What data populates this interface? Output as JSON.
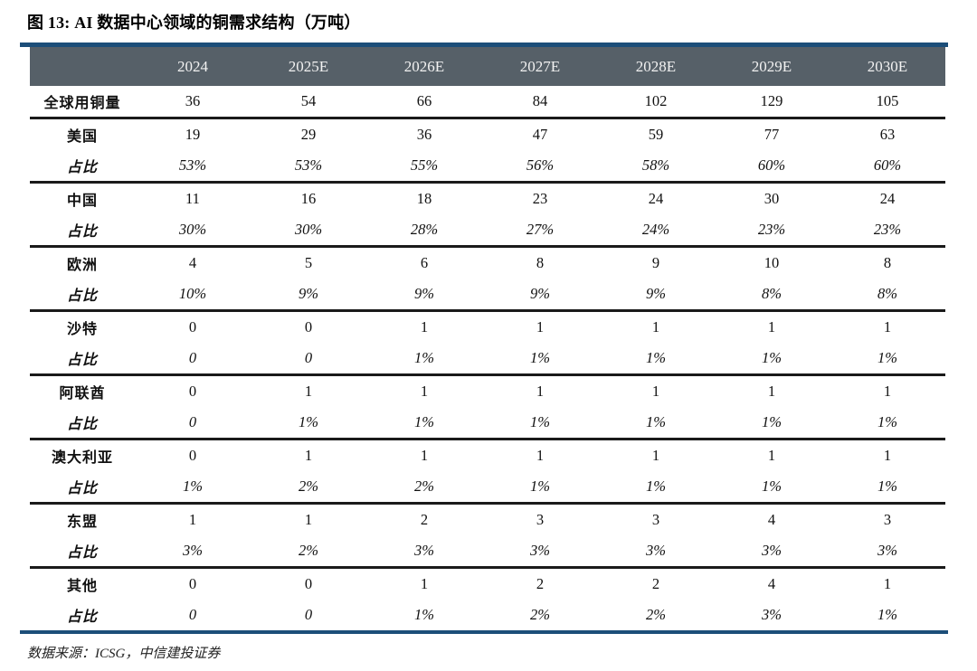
{
  "figure": {
    "title": "图 13: AI 数据中心领域的铜需求结构（万吨）",
    "source": "数据来源：ICSG，中信建投证券"
  },
  "colors": {
    "accent_blue": "#1C4E79",
    "header_bg": "#566068",
    "header_text": "#F2F2F2",
    "divider_black": "#1A1A1A",
    "page_bg": "#FFFFFF"
  },
  "chart_data": {
    "type": "table",
    "title": "AI 数据中心领域的铜需求结构（万吨）",
    "columns": [
      "",
      "2024",
      "2025E",
      "2026E",
      "2027E",
      "2028E",
      "2029E",
      "2030E"
    ],
    "rows": [
      {
        "label": "全球用铜量",
        "values": [
          "36",
          "54",
          "66",
          "84",
          "102",
          "129",
          "105"
        ],
        "italic": false,
        "divider_below": true
      },
      {
        "label": "美国",
        "values": [
          "19",
          "29",
          "36",
          "47",
          "59",
          "77",
          "63"
        ],
        "italic": false,
        "divider_below": false
      },
      {
        "label": "占比",
        "values": [
          "53%",
          "53%",
          "55%",
          "56%",
          "58%",
          "60%",
          "60%"
        ],
        "italic": true,
        "divider_below": true
      },
      {
        "label": "中国",
        "values": [
          "11",
          "16",
          "18",
          "23",
          "24",
          "30",
          "24"
        ],
        "italic": false,
        "divider_below": false
      },
      {
        "label": "占比",
        "values": [
          "30%",
          "30%",
          "28%",
          "27%",
          "24%",
          "23%",
          "23%"
        ],
        "italic": true,
        "divider_below": true
      },
      {
        "label": "欧洲",
        "values": [
          "4",
          "5",
          "6",
          "8",
          "9",
          "10",
          "8"
        ],
        "italic": false,
        "divider_below": false
      },
      {
        "label": "占比",
        "values": [
          "10%",
          "9%",
          "9%",
          "9%",
          "9%",
          "8%",
          "8%"
        ],
        "italic": true,
        "divider_below": true
      },
      {
        "label": "沙特",
        "values": [
          "0",
          "0",
          "1",
          "1",
          "1",
          "1",
          "1"
        ],
        "italic": false,
        "divider_below": false
      },
      {
        "label": "占比",
        "values": [
          "0",
          "0",
          "1%",
          "1%",
          "1%",
          "1%",
          "1%"
        ],
        "italic": true,
        "divider_below": true
      },
      {
        "label": "阿联酋",
        "values": [
          "0",
          "1",
          "1",
          "1",
          "1",
          "1",
          "1"
        ],
        "italic": false,
        "divider_below": false
      },
      {
        "label": "占比",
        "values": [
          "0",
          "1%",
          "1%",
          "1%",
          "1%",
          "1%",
          "1%"
        ],
        "italic": true,
        "divider_below": true
      },
      {
        "label": "澳大利亚",
        "values": [
          "0",
          "1",
          "1",
          "1",
          "1",
          "1",
          "1"
        ],
        "italic": false,
        "divider_below": false
      },
      {
        "label": "占比",
        "values": [
          "1%",
          "2%",
          "2%",
          "1%",
          "1%",
          "1%",
          "1%"
        ],
        "italic": true,
        "divider_below": true
      },
      {
        "label": "东盟",
        "values": [
          "1",
          "1",
          "2",
          "3",
          "3",
          "4",
          "3"
        ],
        "italic": false,
        "divider_below": false
      },
      {
        "label": "占比",
        "values": [
          "3%",
          "2%",
          "3%",
          "3%",
          "3%",
          "3%",
          "3%"
        ],
        "italic": true,
        "divider_below": true
      },
      {
        "label": "其他",
        "values": [
          "0",
          "0",
          "1",
          "2",
          "2",
          "4",
          "1"
        ],
        "italic": false,
        "divider_below": false
      },
      {
        "label": "占比",
        "values": [
          "0",
          "0",
          "1%",
          "2%",
          "2%",
          "3%",
          "1%"
        ],
        "italic": true,
        "divider_below": false
      }
    ]
  }
}
